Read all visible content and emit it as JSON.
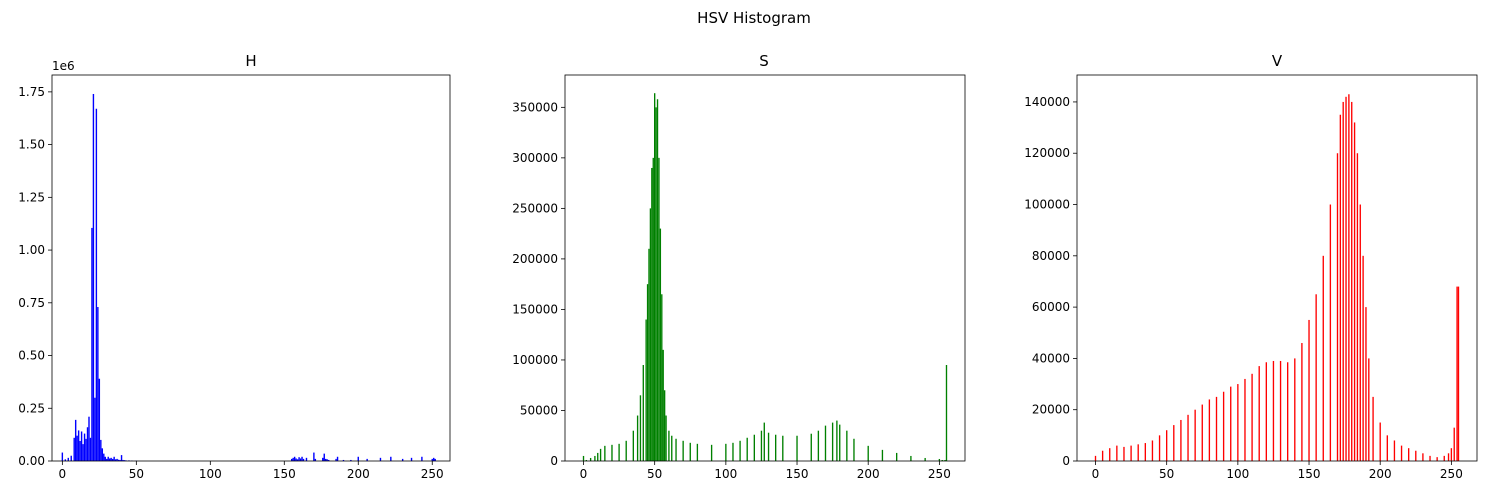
{
  "figure": {
    "suptitle": "HSV Histogram"
  },
  "chart_data": [
    {
      "type": "bar",
      "title": "H",
      "color": "#0000ff",
      "xlim": [
        -7,
        262
      ],
      "ylim": [
        0,
        1830000
      ],
      "offset_text": "1e6",
      "xticks": [
        0,
        50,
        100,
        150,
        200,
        250
      ],
      "xtick_labels": [
        "0",
        "50",
        "100",
        "150",
        "200",
        "250"
      ],
      "yticks": [
        0,
        250000,
        500000,
        750000,
        1000000,
        1250000,
        1500000,
        1750000
      ],
      "ytick_labels": [
        "0.00",
        "0.25",
        "0.50",
        "0.75",
        "1.00",
        "1.25",
        "1.50",
        "1.75"
      ],
      "x": [
        0,
        2,
        4,
        6,
        8,
        9,
        10,
        11,
        12,
        13,
        14,
        15,
        16,
        17,
        18,
        19,
        20,
        21,
        22,
        23,
        24,
        25,
        26,
        27,
        28,
        29,
        30,
        31,
        32,
        33,
        34,
        35,
        36,
        37,
        38,
        39,
        40,
        41,
        42,
        43,
        45,
        47,
        50,
        155,
        156,
        157,
        158,
        159,
        160,
        161,
        162,
        163,
        165,
        170,
        171,
        176,
        177,
        178,
        179,
        180,
        185,
        186,
        190,
        195,
        200,
        206,
        215,
        222,
        230,
        236,
        243,
        250,
        251,
        252
      ],
      "y": [
        40000,
        8000,
        15000,
        25000,
        110000,
        195000,
        120000,
        145000,
        95000,
        140000,
        80000,
        130000,
        105000,
        160000,
        210000,
        110000,
        1105000,
        1740000,
        300000,
        1670000,
        730000,
        390000,
        100000,
        60000,
        35000,
        20000,
        10000,
        20000,
        12000,
        15000,
        10000,
        20000,
        8000,
        10000,
        6000,
        5000,
        28000,
        5000,
        4000,
        3000,
        3000,
        2000,
        2000,
        10000,
        15000,
        20000,
        12000,
        8000,
        18000,
        12000,
        20000,
        10000,
        15000,
        40000,
        10000,
        15000,
        35000,
        10000,
        8000,
        5000,
        10000,
        20000,
        5000,
        5000,
        20000,
        10000,
        15000,
        20000,
        10000,
        15000,
        20000,
        10000,
        15000,
        10000
      ]
    },
    {
      "type": "bar",
      "title": "S",
      "color": "#008000",
      "xlim": [
        -13,
        268
      ],
      "ylim": [
        0,
        382000
      ],
      "xticks": [
        0,
        50,
        100,
        150,
        200,
        250
      ],
      "xtick_labels": [
        "0",
        "50",
        "100",
        "150",
        "200",
        "250"
      ],
      "yticks": [
        0,
        50000,
        100000,
        150000,
        200000,
        250000,
        300000,
        350000
      ],
      "ytick_labels": [
        "0",
        "50000",
        "100000",
        "150000",
        "200000",
        "250000",
        "300000",
        "350000"
      ],
      "x": [
        0,
        2,
        5,
        8,
        10,
        12,
        15,
        20,
        25,
        30,
        35,
        38,
        40,
        42,
        44,
        45,
        46,
        47,
        48,
        49,
        50,
        51,
        52,
        53,
        54,
        55,
        56,
        57,
        58,
        60,
        62,
        65,
        70,
        75,
        80,
        90,
        100,
        105,
        110,
        115,
        120,
        125,
        127,
        130,
        135,
        140,
        150,
        160,
        165,
        170,
        175,
        178,
        180,
        185,
        190,
        200,
        210,
        220,
        230,
        240,
        250,
        252,
        253,
        254,
        255
      ],
      "y": [
        5000,
        1000,
        3000,
        5000,
        8000,
        12000,
        15000,
        16000,
        17000,
        20000,
        30000,
        45000,
        65000,
        95000,
        140000,
        175000,
        210000,
        250000,
        290000,
        300000,
        364000,
        350000,
        358000,
        300000,
        230000,
        165000,
        110000,
        70000,
        45000,
        30000,
        25000,
        22000,
        20000,
        18000,
        17000,
        16000,
        17000,
        18000,
        20000,
        23000,
        26000,
        30000,
        38000,
        28000,
        26000,
        25000,
        25000,
        27000,
        30000,
        35000,
        38000,
        40000,
        36000,
        30000,
        22000,
        15000,
        11000,
        8000,
        5000,
        3000,
        2000,
        1000,
        500,
        1000,
        95000
      ]
    },
    {
      "type": "bar",
      "title": "V",
      "color": "#ff0000",
      "xlim": [
        -13,
        268
      ],
      "ylim": [
        0,
        150500
      ],
      "xticks": [
        0,
        50,
        100,
        150,
        200,
        250
      ],
      "xtick_labels": [
        "0",
        "50",
        "100",
        "150",
        "200",
        "250"
      ],
      "yticks": [
        0,
        20000,
        40000,
        60000,
        80000,
        100000,
        120000,
        140000
      ],
      "ytick_labels": [
        "0",
        "20000",
        "40000",
        "60000",
        "80000",
        "100000",
        "120000",
        "140000"
      ],
      "x": [
        0,
        5,
        10,
        15,
        20,
        25,
        30,
        35,
        40,
        45,
        50,
        55,
        60,
        65,
        70,
        75,
        80,
        85,
        90,
        95,
        100,
        105,
        110,
        115,
        120,
        125,
        130,
        135,
        140,
        145,
        150,
        155,
        160,
        165,
        170,
        172,
        174,
        176,
        178,
        180,
        182,
        184,
        186,
        188,
        190,
        192,
        195,
        200,
        205,
        210,
        215,
        220,
        225,
        230,
        235,
        240,
        245,
        248,
        250,
        252,
        254,
        255
      ],
      "y": [
        2000,
        4000,
        5000,
        6000,
        5500,
        6000,
        6500,
        7000,
        8000,
        10000,
        12000,
        14000,
        16000,
        18000,
        20000,
        22000,
        24000,
        25000,
        27000,
        29000,
        30000,
        32000,
        34000,
        37000,
        38500,
        39000,
        39000,
        38500,
        40000,
        46000,
        55000,
        65000,
        80000,
        100000,
        120000,
        135000,
        140000,
        142000,
        143000,
        140000,
        132000,
        120000,
        100000,
        80000,
        60000,
        40000,
        25000,
        15000,
        10000,
        8000,
        6000,
        5000,
        4000,
        3000,
        2000,
        1500,
        2000,
        3000,
        5000,
        13000,
        68000,
        68000
      ]
    }
  ]
}
